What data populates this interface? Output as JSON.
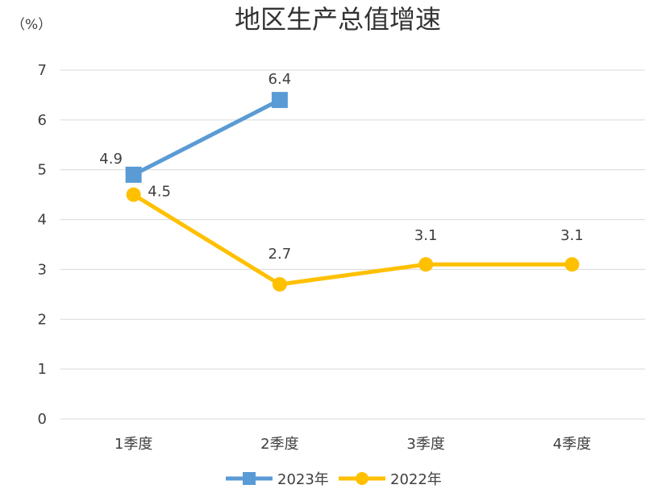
{
  "chart_data": {
    "type": "line",
    "title": "地区生产总值增速",
    "unit_label": "（%）",
    "categories": [
      "1季度",
      "2季度",
      "3季度",
      "4季度"
    ],
    "ylim": [
      0,
      7
    ],
    "yticks": [
      "0",
      "1",
      "2",
      "3",
      "4",
      "5",
      "6",
      "7"
    ],
    "grid": true,
    "legend_position": "bottom",
    "series": [
      {
        "name": "2023年",
        "values": [
          4.9,
          6.4,
          null,
          null
        ],
        "labels": [
          "4.9",
          "6.4",
          "",
          ""
        ],
        "color": "#5b9bd5",
        "marker": "square"
      },
      {
        "name": "2022年",
        "values": [
          4.5,
          2.7,
          3.1,
          3.1
        ],
        "labels": [
          "4.5",
          "2.7",
          "3.1",
          "3.1"
        ],
        "color": "#ffc000",
        "marker": "circle"
      }
    ]
  }
}
